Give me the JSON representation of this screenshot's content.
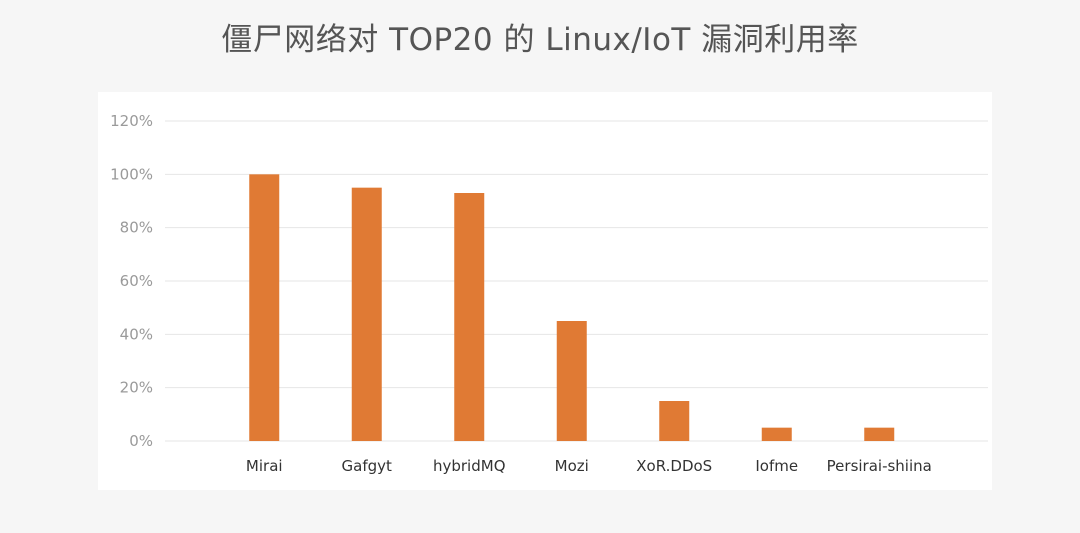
{
  "chart_data": {
    "type": "bar",
    "title": "僵尸网络对 TOP20 的 Linux/IoT 漏洞利用率",
    "categories": [
      "Mirai",
      "Gafgyt",
      "hybridMQ",
      "Mozi",
      "XoR.DDoS",
      "Iofme",
      "Persirai-shiina"
    ],
    "values": [
      100,
      95,
      93,
      45,
      15,
      5,
      5
    ],
    "ylim": [
      0,
      120
    ],
    "yticks": [
      0,
      20,
      40,
      60,
      80,
      100,
      120
    ],
    "ytick_labels": [
      "0%",
      "20%",
      "40%",
      "60%",
      "80%",
      "100%",
      "120%"
    ],
    "xlabel": "",
    "ylabel": "",
    "grid": true,
    "legend": "none",
    "bar_color": "#e07a34",
    "grid_color": "#e6e6e6"
  }
}
